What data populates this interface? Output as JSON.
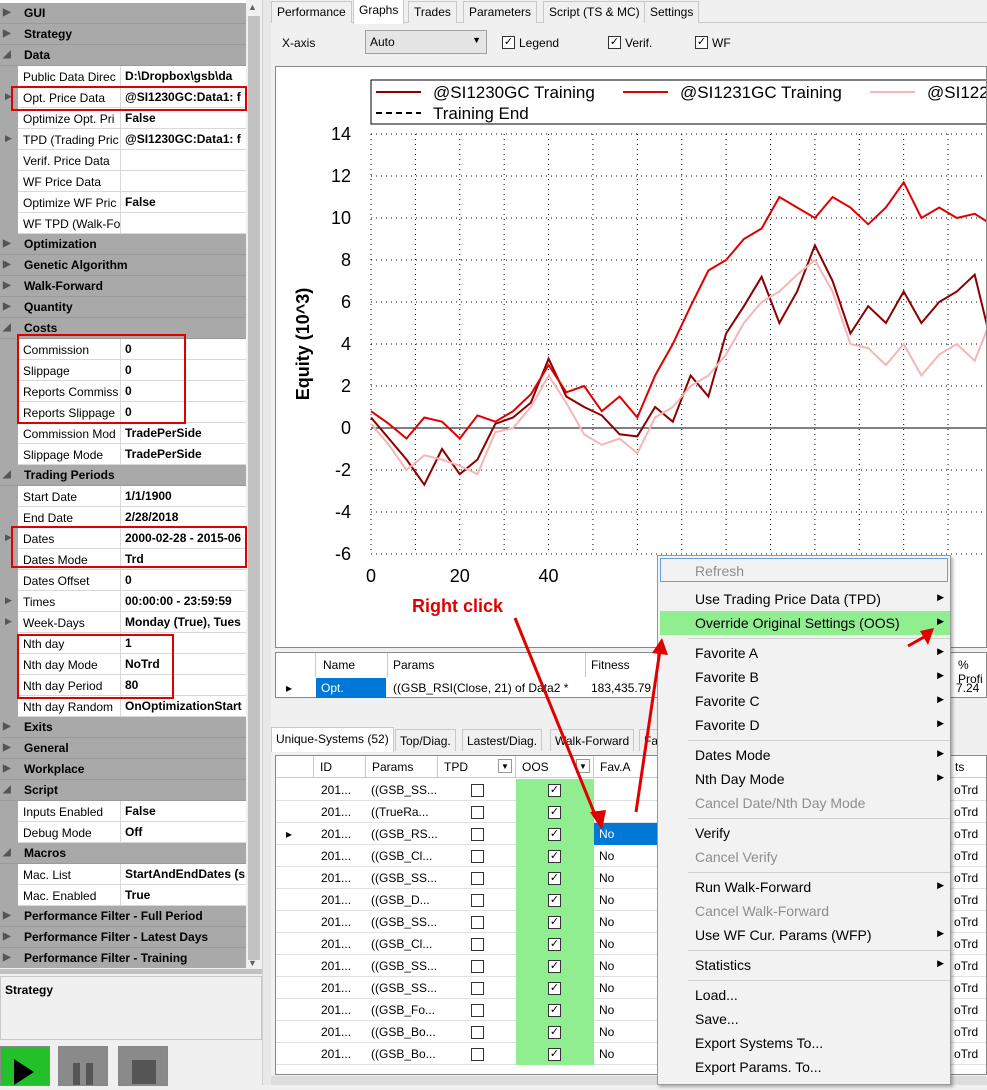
{
  "property_grid": {
    "categories": {
      "gui": "GUI",
      "strategy": "Strategy",
      "data": "Data",
      "optimization": "Optimization",
      "genetic": "Genetic Algorithm",
      "walkforward": "Walk-Forward",
      "quantity": "Quantity",
      "costs": "Costs",
      "trading_periods": "Trading Periods",
      "exits": "Exits",
      "general": "General",
      "workplace": "Workplace",
      "script": "Script",
      "macros": "Macros",
      "pf_full": "Performance Filter - Full Period",
      "pf_latest": "Performance Filter - Latest Days",
      "pf_training": "Performance Filter - Training"
    },
    "data_props": [
      {
        "name": "Public Data Direc",
        "value": "D:\\Dropbox\\gsb\\da"
      },
      {
        "name": "Opt. Price Data",
        "value": "@SI1230GC:Data1: f"
      },
      {
        "name": "Optimize Opt. Pri",
        "value": "False"
      },
      {
        "name": "TPD (Trading Pric",
        "value": "@SI1230GC:Data1: f"
      },
      {
        "name": "Verif. Price Data",
        "value": ""
      },
      {
        "name": "WF Price Data",
        "value": ""
      },
      {
        "name": "Optimize WF Pric",
        "value": "False"
      },
      {
        "name": "WF TPD (Walk-Fo",
        "value": ""
      }
    ],
    "cost_props": [
      {
        "name": "Commission",
        "value": "0"
      },
      {
        "name": "Slippage",
        "value": "0"
      },
      {
        "name": "Reports Commiss",
        "value": "0"
      },
      {
        "name": "Reports Slippage",
        "value": "0"
      },
      {
        "name": "Commission Mod",
        "value": "TradePerSide"
      },
      {
        "name": "Slippage Mode",
        "value": "TradePerSide"
      }
    ],
    "period_props": [
      {
        "name": "Start Date",
        "value": "1/1/1900"
      },
      {
        "name": "End Date",
        "value": "2/28/2018"
      },
      {
        "name": "Dates",
        "value": "2000-02-28 - 2015-06"
      },
      {
        "name": "Dates Mode",
        "value": "Trd"
      },
      {
        "name": "Dates Offset",
        "value": "0"
      },
      {
        "name": "Times",
        "value": "00:00:00 - 23:59:59"
      },
      {
        "name": "Week-Days",
        "value": "Monday (True), Tues"
      },
      {
        "name": "Nth day",
        "value": "1"
      },
      {
        "name": "Nth day Mode",
        "value": "NoTrd"
      },
      {
        "name": "Nth day Period",
        "value": "80"
      },
      {
        "name": "Nth day Random",
        "value": "OnOptimizationStart"
      }
    ],
    "script_props": [
      {
        "name": "Inputs Enabled",
        "value": "False"
      },
      {
        "name": "Debug Mode",
        "value": "Off"
      }
    ],
    "macro_props": [
      {
        "name": "Mac. List",
        "value": "StartAndEndDates (s"
      },
      {
        "name": "Mac. Enabled",
        "value": "True"
      }
    ],
    "description_title": "Strategy"
  },
  "tabs": [
    "Performance",
    "Graphs",
    "Trades",
    "Parameters",
    "Script (TS & MC)",
    "Settings"
  ],
  "toolbar": {
    "xaxis_label": "X-axis",
    "xaxis_value": "Auto",
    "legend_label": "Legend",
    "verif_label": "Verif.",
    "wf_label": "WF"
  },
  "chart_data": {
    "type": "line",
    "title": "",
    "ylabel": "Equity (10^3)",
    "xlabel": "",
    "ylim": [
      -6,
      14
    ],
    "xlim": [
      0,
      139
    ],
    "yticks": [
      "14",
      "12",
      "10",
      "8",
      "6",
      "4",
      "2",
      "0",
      "-2",
      "-4",
      "-6"
    ],
    "xticks": [
      "0",
      "20",
      "40"
    ],
    "legend_labels": [
      "@SI1230GC Training",
      "@SI1231GC Training",
      "@SI122",
      "Training End"
    ],
    "legend_placement": "top",
    "grid": "dotted",
    "series": [
      {
        "name": "@SI1230GC Training",
        "color": "#8b0000",
        "x": [
          0,
          4,
          8,
          12,
          16,
          20,
          24,
          28,
          32,
          36,
          40,
          44,
          48,
          52,
          56,
          60,
          64,
          68,
          72,
          76,
          80,
          84,
          88,
          92,
          96,
          100,
          104,
          108,
          112,
          116,
          120,
          124,
          128,
          132,
          136,
          139
        ],
        "y": [
          0.5,
          -0.5,
          -1.5,
          -2.7,
          -1,
          -2.2,
          -1.5,
          0.2,
          0.5,
          1.2,
          3.3,
          1.5,
          1,
          0.6,
          -0.3,
          -0.4,
          1,
          0.3,
          2.5,
          1.5,
          4.5,
          5.8,
          7.2,
          5,
          6.5,
          8.7,
          7,
          4.5,
          5.8,
          5,
          6.5,
          5,
          6,
          6.5,
          7.3,
          4.7
        ]
      },
      {
        "name": "@SI1231GC Training",
        "color": "#e00000",
        "x": [
          0,
          4,
          8,
          12,
          16,
          20,
          24,
          28,
          32,
          36,
          40,
          44,
          48,
          52,
          56,
          60,
          64,
          68,
          72,
          76,
          80,
          84,
          88,
          92,
          96,
          100,
          104,
          108,
          112,
          116,
          120,
          124,
          128,
          132,
          136,
          139
        ],
        "y": [
          0.8,
          0.2,
          -0.5,
          0.5,
          0.3,
          -0.5,
          0.6,
          0.3,
          0.8,
          1.6,
          3,
          1.7,
          2,
          0.8,
          1.5,
          0.5,
          2.5,
          4,
          5.8,
          7.5,
          8,
          9,
          9.5,
          11,
          10.5,
          10,
          11,
          10.5,
          9.7,
          10.5,
          11.7,
          10,
          10.5,
          10,
          10.2,
          9.8
        ]
      },
      {
        "name": "@SI122",
        "color": "#f4b6b6",
        "x": [
          0,
          4,
          8,
          12,
          16,
          20,
          24,
          28,
          32,
          36,
          40,
          44,
          48,
          52,
          56,
          60,
          64,
          68,
          72,
          76,
          80,
          84,
          88,
          92,
          96,
          100,
          104,
          108,
          112,
          116,
          120,
          124,
          128,
          132,
          136,
          139
        ],
        "y": [
          0.2,
          -0.8,
          -2,
          -1.3,
          -1.5,
          -1.8,
          -2.2,
          -0.2,
          0,
          1,
          2.5,
          1.2,
          -0.3,
          -0.8,
          -0.5,
          -1.2,
          0.5,
          1,
          2,
          2.5,
          3.5,
          5,
          6,
          6.5,
          7.3,
          8,
          6.5,
          4,
          3.8,
          3,
          4,
          2.5,
          3.5,
          4,
          3.2,
          4.8
        ]
      }
    ]
  },
  "results_grid": {
    "headers": [
      "Name",
      "Params",
      "Fitness",
      "% Profi"
    ],
    "row": [
      "Opt.",
      "((GSB_RSI(Close, 21) of Data2 *",
      "183,435.79",
      "7.24"
    ]
  },
  "bottom_tabs": [
    "Unique-Systems (52)",
    "Top/Diag.",
    "Lastest/Diag.",
    "Walk-Forward",
    "Fa"
  ],
  "unique_grid": {
    "headers": [
      "ID",
      "Params",
      "TPD",
      "OOS",
      "Fav.A",
      "ts"
    ],
    "rows": [
      {
        "id": "201...",
        "params": "((GSB_SS...",
        "fav": "",
        "last": "oTrd"
      },
      {
        "id": "201...",
        "params": "((TrueRa...",
        "fav": "",
        "last": "oTrd"
      },
      {
        "id": "201...",
        "params": "((GSB_RS...",
        "fav": "No",
        "last": "oTrd"
      },
      {
        "id": "201...",
        "params": "((GSB_Cl...",
        "fav": "No",
        "last": "oTrd"
      },
      {
        "id": "201...",
        "params": "((GSB_SS...",
        "fav": "No",
        "last": "oTrd"
      },
      {
        "id": "201...",
        "params": "((GSB_D...",
        "fav": "No",
        "last": "oTrd"
      },
      {
        "id": "201...",
        "params": "((GSB_SS...",
        "fav": "No",
        "last": "oTrd"
      },
      {
        "id": "201...",
        "params": "((GSB_Cl...",
        "fav": "No",
        "last": "oTrd"
      },
      {
        "id": "201...",
        "params": "((GSB_SS...",
        "fav": "No",
        "last": "oTrd"
      },
      {
        "id": "201...",
        "params": "((GSB_SS...",
        "fav": "No",
        "last": "oTrd"
      },
      {
        "id": "201...",
        "params": "((GSB_Fo...",
        "fav": "No",
        "last": "oTrd"
      },
      {
        "id": "201...",
        "params": "((GSB_Bo...",
        "fav": "No",
        "last": "oTrd"
      },
      {
        "id": "201...",
        "params": "((GSB_Bo...",
        "fav": "No",
        "last": "oTrd"
      }
    ]
  },
  "context_menu": {
    "refresh": "Refresh",
    "use_tpd": "Use Trading Price Data (TPD)",
    "override": "Override Original Settings (OOS)",
    "fav_a": "Favorite A",
    "fav_b": "Favorite B",
    "fav_c": "Favorite C",
    "fav_d": "Favorite D",
    "dates_mode": "Dates Mode",
    "nth_day_mode": "Nth Day Mode",
    "cancel_date": "Cancel Date/Nth Day Mode",
    "verify": "Verify",
    "cancel_verify": "Cancel Verify",
    "run_wf": "Run Walk-Forward",
    "cancel_wf": "Cancel Walk-Forward",
    "use_wf": "Use WF Cur. Params (WFP)",
    "statistics": "Statistics",
    "load": "Load...",
    "save": "Save...",
    "export_systems": "Export Systems To...",
    "export_params": "Export Params. To..."
  },
  "annotation": "Right click",
  "colors": {
    "highlight_green": "#90ee90",
    "oos_green": "#90ee90",
    "annotation_red": "#e00000",
    "selection_blue": "#0078d7"
  }
}
